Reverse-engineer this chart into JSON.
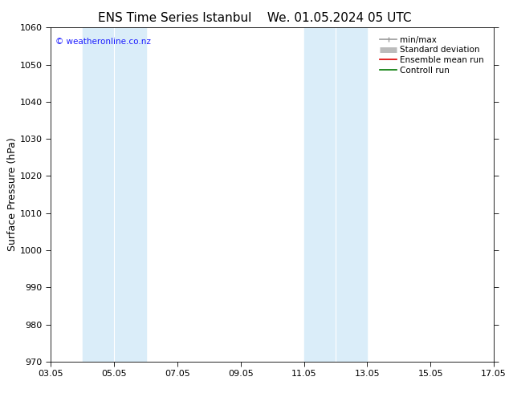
{
  "title_left": "ENS Time Series Istanbul",
  "title_right": "We. 01.05.2024 05 UTC",
  "ylabel": "Surface Pressure (hPa)",
  "ylim": [
    970,
    1060
  ],
  "yticks": [
    970,
    980,
    990,
    1000,
    1010,
    1020,
    1030,
    1040,
    1050,
    1060
  ],
  "date_start": "2024-05-01",
  "date_end": "2024-05-17",
  "xtick_dates": [
    "2024-05-03",
    "2024-05-05",
    "2024-05-07",
    "2024-05-09",
    "2024-05-11",
    "2024-05-13",
    "2024-05-15",
    "2024-05-17"
  ],
  "xtick_labels": [
    "03.05",
    "05.05",
    "07.05",
    "09.05",
    "11.05",
    "13.05",
    "15.05",
    "17.05"
  ],
  "shaded_bands": [
    {
      "xmin": "2024-05-04",
      "xmax": "2024-05-05 12:00",
      "color": "#daedf9"
    },
    {
      "xmin": "2024-05-05 12:00",
      "xmax": "2024-05-06",
      "color": "#daedf9"
    },
    {
      "xmin": "2024-05-11",
      "xmax": "2024-05-12",
      "color": "#daedf9"
    },
    {
      "xmin": "2024-05-12",
      "xmax": "2024-05-13",
      "color": "#daedf9"
    }
  ],
  "watermark": "© weatheronline.co.nz",
  "watermark_color": "#1a1aff",
  "legend_items": [
    {
      "label": "min/max",
      "color": "#999999",
      "lw": 1.2
    },
    {
      "label": "Standard deviation",
      "color": "#bbbbbb",
      "lw": 5
    },
    {
      "label": "Ensemble mean run",
      "color": "#dd0000",
      "lw": 1.2
    },
    {
      "label": "Controll run",
      "color": "#007700",
      "lw": 1.2
    }
  ],
  "bg_color": "#ffffff",
  "title_fontsize": 11,
  "tick_fontsize": 8,
  "ylabel_fontsize": 9,
  "legend_fontsize": 7.5
}
